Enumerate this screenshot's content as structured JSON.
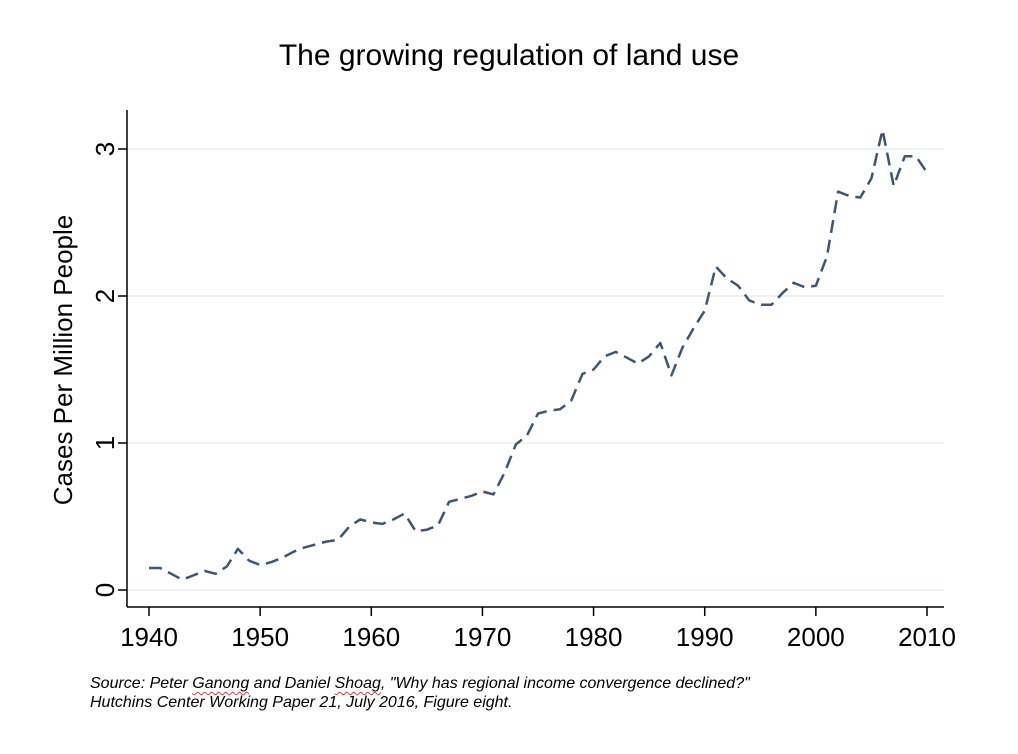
{
  "chart_data": {
    "type": "line",
    "title": "The growing regulation of land use",
    "xlabel": "",
    "ylabel": "Cases Per Million People",
    "xlim": [
      1940,
      2010
    ],
    "ylim": [
      0,
      3
    ],
    "x_ticks": [
      "1940",
      "1950",
      "1960",
      "1970",
      "1980",
      "1990",
      "2000",
      "2010"
    ],
    "y_ticks": [
      "0",
      "1",
      "2",
      "3"
    ],
    "grid": "horizontal",
    "line_style": "dashed",
    "line_color": "#3d5674",
    "series": [
      {
        "x": [
          1940,
          1941,
          1942,
          1943,
          1944,
          1945,
          1946,
          1947,
          1948,
          1949,
          1950,
          1951,
          1952,
          1953,
          1954,
          1955,
          1956,
          1957,
          1958,
          1959,
          1960,
          1961,
          1962,
          1963,
          1964,
          1965,
          1966,
          1967,
          1968,
          1969,
          1970,
          1971,
          1972,
          1973,
          1974,
          1975,
          1976,
          1977,
          1978,
          1979,
          1980,
          1981,
          1982,
          1983,
          1984,
          1985,
          1986,
          1987,
          1988,
          1989,
          1990,
          1991,
          1992,
          1993,
          1994,
          1995,
          1996,
          1997,
          1998,
          1999,
          2000,
          2001,
          2002,
          2003,
          2004,
          2005,
          2006,
          2007,
          2008,
          2009,
          2010
        ],
        "y": [
          0.15,
          0.15,
          0.11,
          0.07,
          0.1,
          0.13,
          0.11,
          0.16,
          0.28,
          0.2,
          0.17,
          0.19,
          0.22,
          0.26,
          0.29,
          0.31,
          0.33,
          0.34,
          0.43,
          0.48,
          0.46,
          0.45,
          0.48,
          0.52,
          0.4,
          0.41,
          0.44,
          0.6,
          0.62,
          0.64,
          0.67,
          0.65,
          0.8,
          0.99,
          1.05,
          1.2,
          1.22,
          1.23,
          1.29,
          1.47,
          1.5,
          1.59,
          1.62,
          1.58,
          1.54,
          1.59,
          1.68,
          1.46,
          1.65,
          1.78,
          1.9,
          2.2,
          2.12,
          2.07,
          1.97,
          1.94,
          1.94,
          2.02,
          2.09,
          2.06,
          2.07,
          2.27,
          2.71,
          2.68,
          2.67,
          2.8,
          3.13,
          2.75,
          2.95,
          2.95,
          2.84
        ]
      }
    ]
  },
  "source": {
    "line1_pre": "Source: Peter ",
    "author1_first": "Ganong",
    "line1_mid": " and Daniel ",
    "author2_last": "Shoag",
    "line1_post": ", \"Why has regional income convergence declined?\"",
    "line2": "Hutchins Center Working Paper 21, July 2016, Figure eight."
  }
}
